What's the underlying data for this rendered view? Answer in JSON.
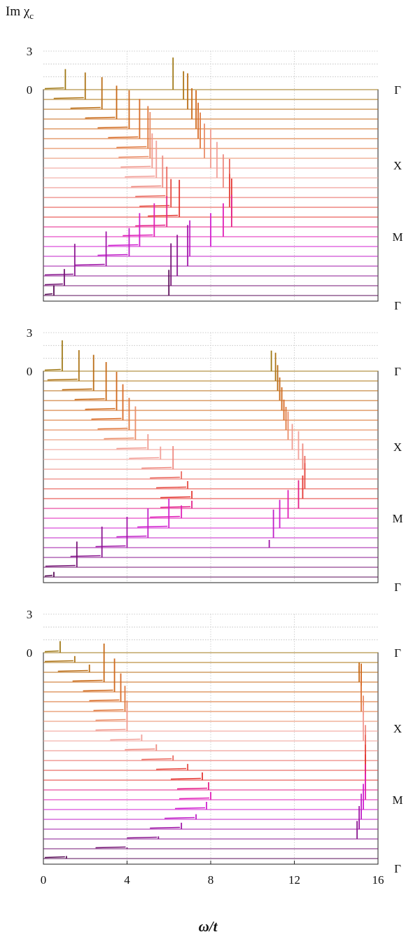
{
  "figure": {
    "ylabel": "Im χ",
    "ylabel_sub": "c",
    "xlabel": "ω/t"
  },
  "chart_data": {
    "type": "line",
    "description_of_layout": "three stacked waterfall panels sharing the x axis",
    "x_axis": {
      "label": "ω/t",
      "range": [
        0,
        16
      ],
      "ticks": [
        0,
        4,
        8,
        12,
        16
      ],
      "grid": "dotted vertical at 4, 8, 12"
    },
    "y_axis": {
      "label": "Im χc",
      "ticks_per_panel": [
        "3",
        "0"
      ]
    },
    "path_labels": [
      "Γ",
      "X",
      "M",
      "Γ"
    ],
    "curves_per_panel": 22,
    "panels": [
      {
        "name": "top",
        "low_branch_peaks": [
          1.05,
          2.0,
          2.8,
          3.5,
          4.1,
          4.6,
          5.0,
          5.1,
          5.2,
          5.4,
          5.7,
          5.9,
          6.1,
          6.5,
          5.9,
          5.3,
          4.6,
          4.1,
          3.0,
          1.5,
          1.0,
          0.5
        ],
        "low_branch_heights": [
          1.6,
          2.1,
          2.5,
          2.6,
          3.0,
          3.1,
          3.3,
          3.6,
          2.7,
          2.9,
          2.5,
          2.4,
          2.2,
          2.9,
          2.4,
          2.6,
          2.6,
          2.2,
          2.7,
          2.5,
          1.3,
          0.8
        ],
        "high_branch_peaks": [
          6.2,
          6.7,
          6.9,
          7.1,
          7.3,
          7.4,
          7.5,
          7.7,
          8.0,
          8.3,
          8.6,
          8.9,
          8.9,
          9.0,
          9.0,
          8.6,
          8.0,
          7.0,
          6.9,
          6.4,
          6.1,
          6.0
        ],
        "high_branch_heights": [
          2.5,
          2.2,
          2.8,
          2.4,
          3.0,
          2.8,
          2.8,
          2.7,
          3.0,
          2.8,
          2.6,
          3.0,
          2.6,
          3.0,
          2.5,
          2.6,
          2.6,
          2.8,
          3.2,
          3.2,
          3.3,
          2.0
        ]
      },
      {
        "name": "middle",
        "low_branch_peaks": [
          0.9,
          1.7,
          2.4,
          3.0,
          3.5,
          3.8,
          4.1,
          4.4,
          5.0,
          5.6,
          6.2,
          6.6,
          6.9,
          7.1,
          7.1,
          6.6,
          6.0,
          5.0,
          4.0,
          2.8,
          1.6,
          0.5
        ],
        "low_branch_heights": [
          2.4,
          2.4,
          2.8,
          3.0,
          3.0,
          2.8,
          2.5,
          2.6,
          1.2,
          1.0,
          1.8,
          0.6,
          0.6,
          0.6,
          0.6,
          1.0,
          2.3,
          2.3,
          2.4,
          2.4,
          2.0,
          0.4
        ],
        "high_branch_peaks": [
          10.9,
          11.1,
          11.2,
          11.3,
          11.4,
          11.5,
          11.6,
          11.7,
          11.9,
          12.2,
          12.4,
          12.5,
          12.5,
          12.4,
          12.2,
          11.7,
          11.3,
          11.0,
          10.8,
          null,
          null,
          null
        ],
        "high_branch_heights": [
          1.6,
          2.2,
          2.0,
          1.8,
          1.8,
          1.6,
          1.8,
          2.2,
          2.0,
          2.2,
          2.0,
          1.8,
          2.0,
          1.8,
          2.2,
          2.2,
          2.2,
          2.2,
          0.6,
          null,
          null,
          null
        ]
      },
      {
        "name": "bottom",
        "low_branch_peaks": [
          0.8,
          1.5,
          2.2,
          2.9,
          3.4,
          3.7,
          3.9,
          4.0,
          4.0,
          4.7,
          5.4,
          6.2,
          6.9,
          7.6,
          7.9,
          8.0,
          7.8,
          7.3,
          6.6,
          5.5,
          4.0,
          1.1
        ],
        "low_branch_heights": [
          0.9,
          0.5,
          0.6,
          3.0,
          2.6,
          2.2,
          2.0,
          1.6,
          1.8,
          0.5,
          0.5,
          0.4,
          0.5,
          0.6,
          0.6,
          0.6,
          0.6,
          0.4,
          0.5,
          0.2,
          0.1,
          0.2
        ],
        "high_branch_peaks": [
          null,
          null,
          15.1,
          15.1,
          15.2,
          15.2,
          15.2,
          15.3,
          15.3,
          15.3,
          15.4,
          15.4,
          15.4,
          15.4,
          15.4,
          15.4,
          15.3,
          15.2,
          15.1,
          15.0,
          null,
          null
        ],
        "high_branch_heights": [
          null,
          null,
          0.5,
          1.5,
          2.2,
          2.0,
          2.0,
          2.0,
          2.0,
          2.0,
          2.0,
          2.0,
          2.0,
          2.0,
          2.0,
          2.0,
          2.0,
          2.0,
          1.8,
          1.4,
          null,
          null
        ]
      }
    ],
    "colors": [
      "#a07a18",
      "#ad7416",
      "#ba6d16",
      "#c86a18",
      "#d06a1e",
      "#d96c28",
      "#e07a40",
      "#ea8e6a",
      "#f09b90",
      "#f2a099",
      "#ee8a80",
      "#ea6a60",
      "#e64a42",
      "#e43834",
      "#e4228a",
      "#e020b8",
      "#d020d0",
      "#c020c8",
      "#a018a8",
      "#8a1890",
      "#741474",
      "#5a0e58"
    ]
  }
}
